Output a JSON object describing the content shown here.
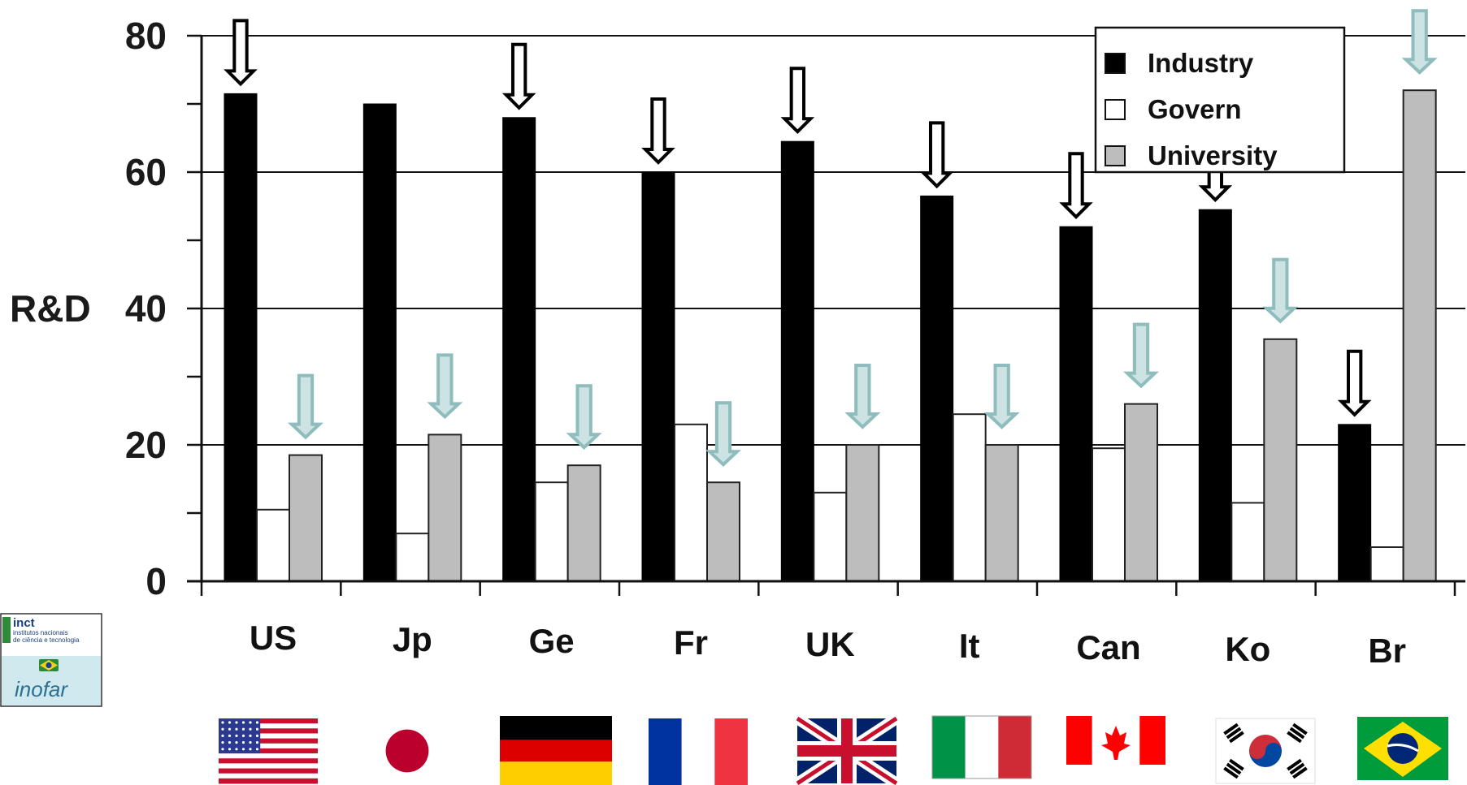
{
  "chart_data": {
    "type": "bar",
    "ylabel": "R&D",
    "ylim": [
      0,
      80
    ],
    "yticks": [
      "0",
      "20",
      "40",
      "60",
      "80"
    ],
    "grid": true,
    "legend_position": "top-right",
    "categories": [
      "US",
      "Jp",
      "Ge",
      "Fr",
      "UK",
      "It",
      "Can",
      "Ko",
      "Br"
    ],
    "series": [
      {
        "name": "Industry",
        "color": "#000000",
        "values": [
          71.5,
          70,
          68,
          60,
          64.5,
          56.5,
          52,
          54.5,
          23
        ]
      },
      {
        "name": "Govern",
        "color": "#ffffff",
        "values": [
          10.5,
          7,
          14.5,
          23,
          13,
          24.5,
          19.5,
          11.5,
          5
        ]
      },
      {
        "name": "University",
        "color": "#bdbdbd",
        "values": [
          18.5,
          21.5,
          17,
          14.5,
          20,
          20,
          26,
          35.5,
          72
        ]
      }
    ],
    "arrows": {
      "industry": {
        "color": "#000000",
        "categories": [
          "US",
          "Ge",
          "Fr",
          "UK",
          "It",
          "Can",
          "Ko",
          "Br"
        ]
      },
      "university": {
        "color": "#8fbcbc",
        "categories": [
          "US",
          "Jp",
          "Ge",
          "Fr",
          "UK",
          "It",
          "Can",
          "Ko",
          "Br"
        ]
      }
    },
    "flags": [
      "us-flag",
      "japan-flag",
      "germany-flag",
      "france-flag",
      "uk-flag",
      "italy-flag",
      "canada-flag",
      "korea-flag",
      "brazil-flag"
    ]
  },
  "logo": {
    "name": "inct",
    "line1": "institutos nacionais",
    "line2": "de ciência e tecnologia",
    "script": "inofar"
  }
}
